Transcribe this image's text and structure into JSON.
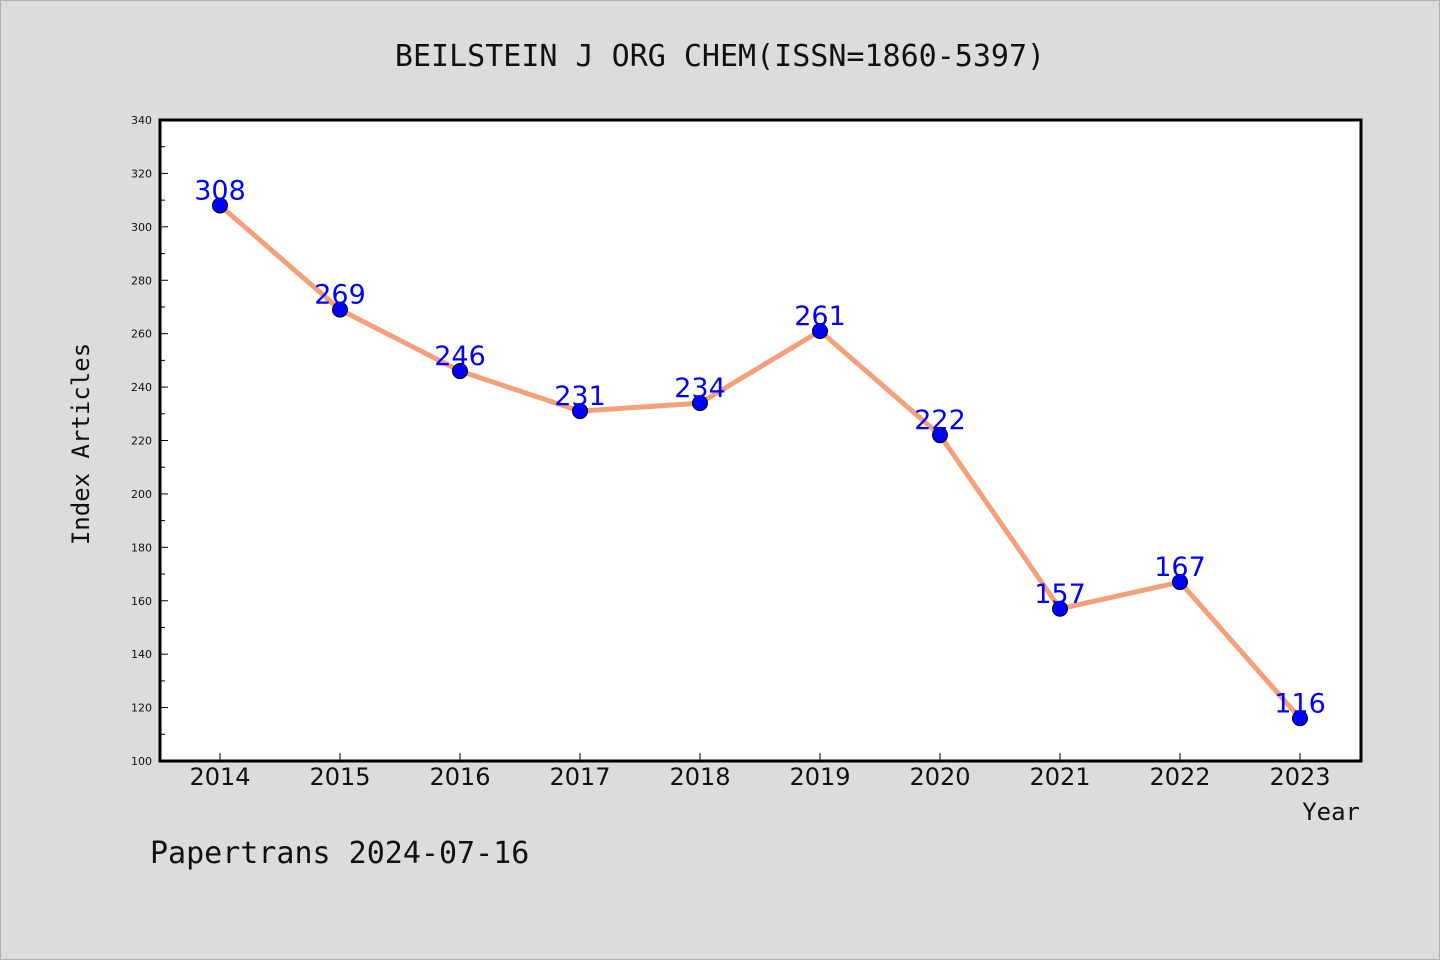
{
  "chart_data": {
    "type": "line",
    "title": "BEILSTEIN J ORG CHEM(ISSN=1860-5397)",
    "xlabel": "Year",
    "ylabel": "Index Articles",
    "categories": [
      "2014",
      "2015",
      "2016",
      "2017",
      "2018",
      "2019",
      "2020",
      "2021",
      "2022",
      "2023"
    ],
    "series": [
      {
        "values": [
          308,
          269,
          246,
          231,
          234,
          261,
          222,
          157,
          167,
          116
        ]
      }
    ],
    "ylim": [
      100,
      340
    ],
    "yticks": [
      100,
      120,
      140,
      160,
      180,
      200,
      220,
      240,
      260,
      280,
      300,
      320,
      340
    ],
    "grid": false,
    "line_color": "#f5a07a",
    "marker_color": "#0000ff",
    "label_color": "#0000ff"
  },
  "footer": {
    "text": "Papertrans 2024-07-16"
  }
}
